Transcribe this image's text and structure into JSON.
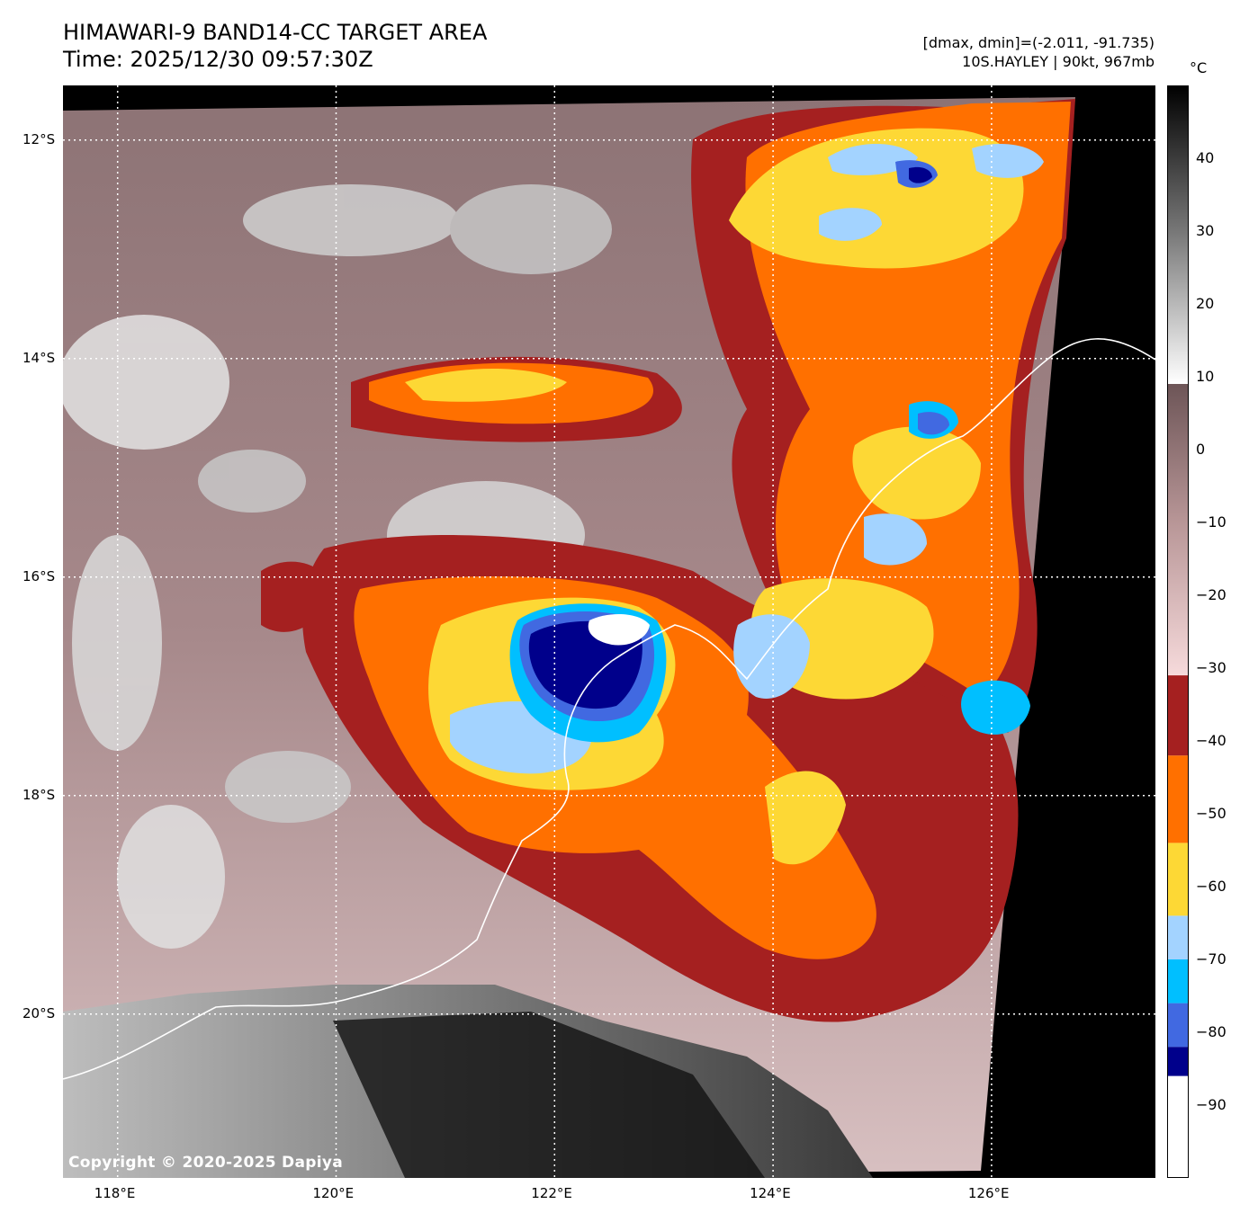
{
  "title": {
    "line1": "HIMAWARI-9 BAND14-CC TARGET AREA",
    "line2": "Time: 2025/12/30 09:57:30Z"
  },
  "meta": {
    "range": "[dmax, dmin]=(-2.011, -91.735)",
    "storm": "10S.HAYLEY | 90kt, 967mb"
  },
  "map": {
    "lon_range": [
      117.5,
      127.5
    ],
    "lat_range": [
      -21.5,
      -11.5
    ],
    "lon_ticks": [
      {
        "value": 118,
        "label": "118°E"
      },
      {
        "value": 120,
        "label": "120°E"
      },
      {
        "value": 122,
        "label": "122°E"
      },
      {
        "value": 124,
        "label": "124°E"
      },
      {
        "value": 126,
        "label": "126°E"
      }
    ],
    "lat_ticks": [
      {
        "value": -12,
        "label": "12°S"
      },
      {
        "value": -14,
        "label": "14°S"
      },
      {
        "value": -16,
        "label": "16°S"
      },
      {
        "value": -18,
        "label": "18°S"
      },
      {
        "value": -20,
        "label": "20°S"
      }
    ],
    "grid": "dotted white",
    "copyright": "Copyright © 2020-2025 Dapiya"
  },
  "colorbar": {
    "unit": "°C",
    "range": [
      -100,
      50
    ],
    "ticks": [
      {
        "value": 40,
        "label": "40"
      },
      {
        "value": 30,
        "label": "30"
      },
      {
        "value": 20,
        "label": "20"
      },
      {
        "value": 10,
        "label": "10"
      },
      {
        "value": 0,
        "label": "0"
      },
      {
        "value": -10,
        "label": "−10"
      },
      {
        "value": -20,
        "label": "−20"
      },
      {
        "value": -30,
        "label": "−30"
      },
      {
        "value": -40,
        "label": "−40"
      },
      {
        "value": -50,
        "label": "−50"
      },
      {
        "value": -60,
        "label": "−60"
      },
      {
        "value": -70,
        "label": "−70"
      },
      {
        "value": -80,
        "label": "−80"
      },
      {
        "value": -90,
        "label": "−90"
      }
    ],
    "bands": [
      {
        "from": -100,
        "to": -86,
        "color": "#ffffff"
      },
      {
        "from": -86,
        "to": -82,
        "color": "#00008b"
      },
      {
        "from": -82,
        "to": -76,
        "color": "#4169e1"
      },
      {
        "from": -76,
        "to": -70,
        "color": "#00bfff"
      },
      {
        "from": -70,
        "to": -64,
        "color": "#a3d3ff"
      },
      {
        "from": -64,
        "to": -54,
        "color": "#fdd835"
      },
      {
        "from": -54,
        "to": -42,
        "color": "#ff7000"
      },
      {
        "from": -42,
        "to": -31,
        "color": "#a52020"
      }
    ],
    "gradient_stops": [
      {
        "value": -31,
        "color": "#f6dadb"
      },
      {
        "value": -10,
        "color": "#b89697"
      },
      {
        "value": 9,
        "color": "#6d5557"
      },
      {
        "value": 9.01,
        "color": "#ffffff"
      },
      {
        "value": 30,
        "color": "#777777"
      },
      {
        "value": 50,
        "color": "#000000"
      }
    ]
  }
}
